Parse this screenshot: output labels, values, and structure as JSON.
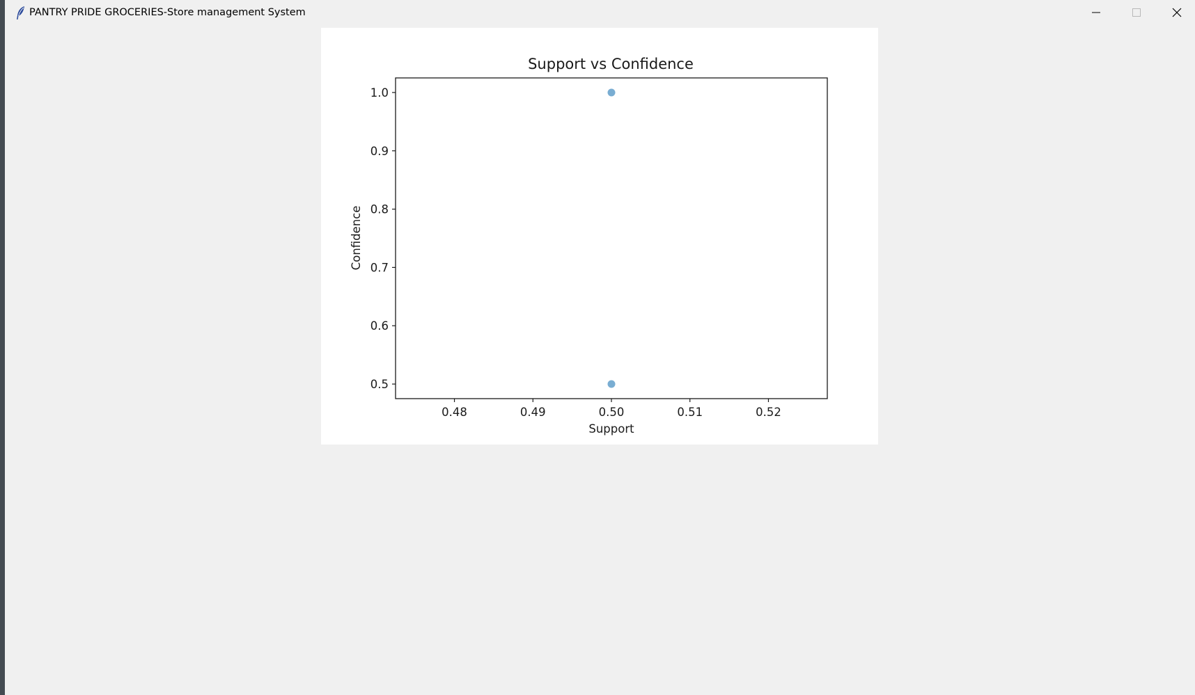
{
  "window": {
    "title": "PANTRY PRIDE GROCERIES-Store management System",
    "app_icon": "feather-icon",
    "controls": {
      "minimize_icon": "minimize-icon",
      "maximize_icon": "maximize-icon",
      "close_icon": "close-icon"
    }
  },
  "chart_data": {
    "type": "scatter",
    "title": "Support vs Confidence",
    "xlabel": "Support",
    "ylabel": "Confidence",
    "xlim": [
      0.4725,
      0.5275
    ],
    "ylim": [
      0.475,
      1.025
    ],
    "xticks": [
      0.48,
      0.49,
      0.5,
      0.51,
      0.52
    ],
    "xtick_labels": [
      "0.48",
      "0.49",
      "0.50",
      "0.51",
      "0.52"
    ],
    "yticks": [
      0.5,
      0.6,
      0.7,
      0.8,
      0.9,
      1.0
    ],
    "ytick_labels": [
      "0.5",
      "0.6",
      "0.7",
      "0.8",
      "0.9",
      "1.0"
    ],
    "grid": false,
    "marker_color": "#1f77b4",
    "marker_alpha": 0.6,
    "points": [
      {
        "x": 0.5,
        "y": 1.0
      },
      {
        "x": 0.5,
        "y": 0.5
      }
    ]
  }
}
